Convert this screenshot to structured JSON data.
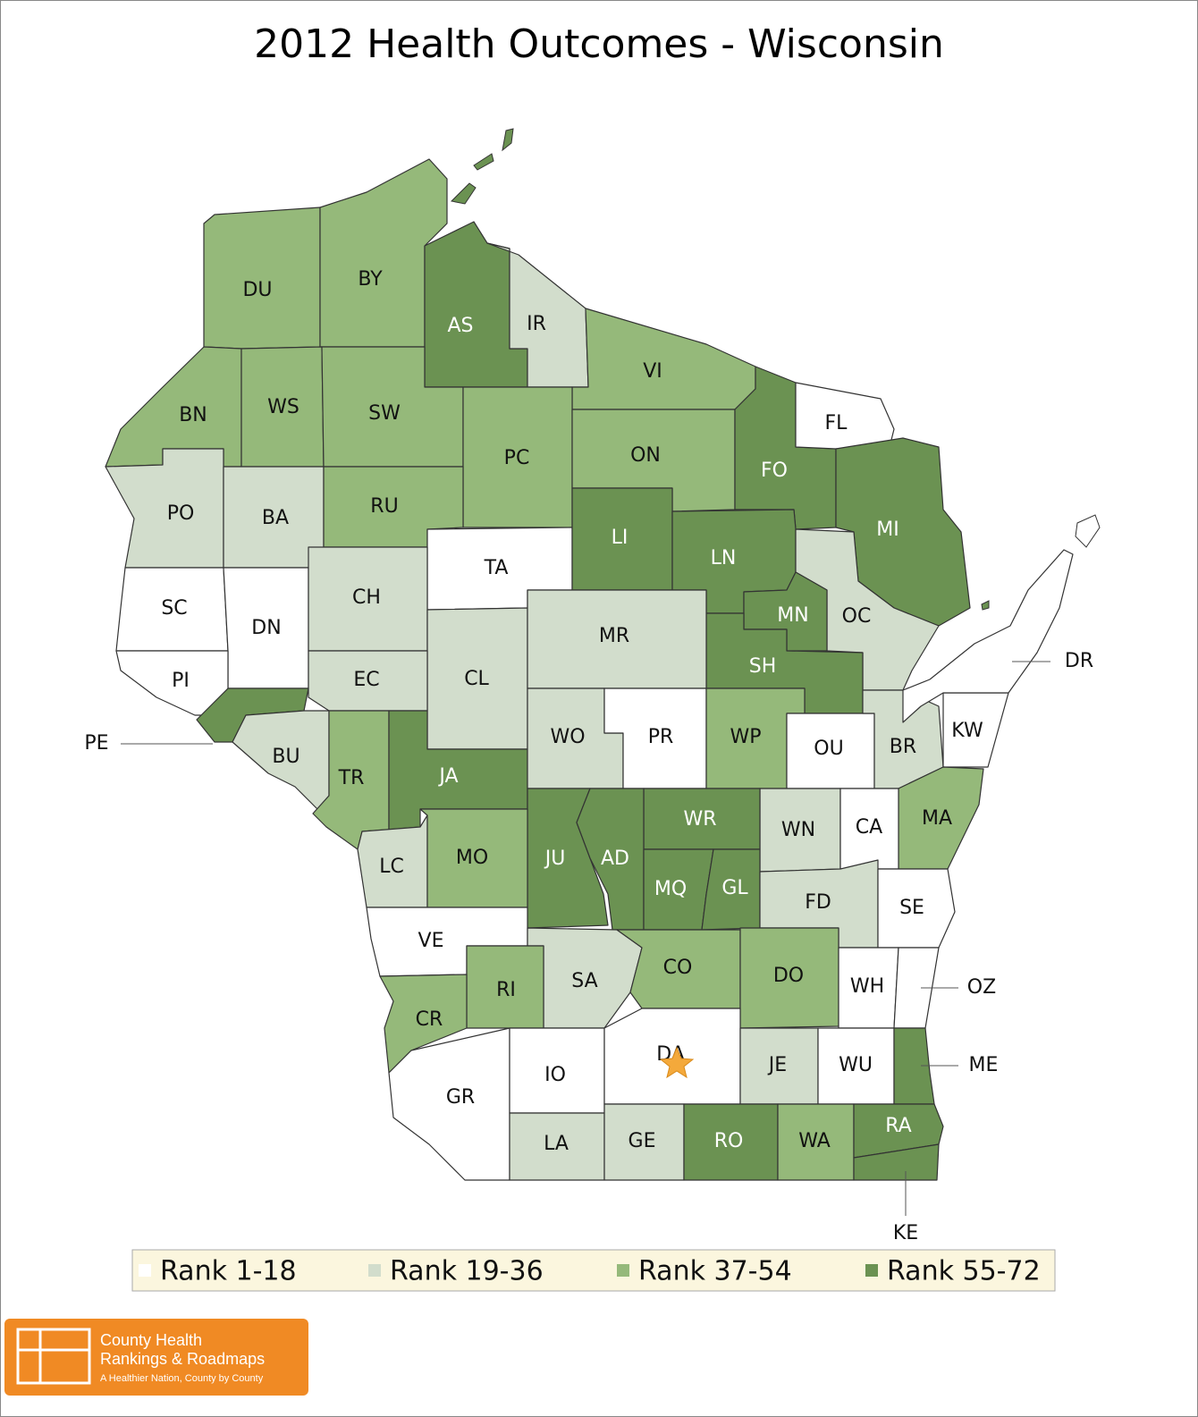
{
  "title": "2012 Health Outcomes - Wisconsin",
  "counties": [
    {
      "label": "DU",
      "color": "#95b97a"
    },
    {
      "label": "BY",
      "color": "#95b97a"
    },
    {
      "label": "AS",
      "color": "#6b9252"
    },
    {
      "label": "IR",
      "color": "#d2ddcc"
    },
    {
      "label": "VI",
      "color": "#95b97a"
    },
    {
      "label": "BN",
      "color": "#95b97a"
    },
    {
      "label": "WS",
      "color": "#95b97a"
    },
    {
      "label": "SW",
      "color": "#95b97a"
    },
    {
      "label": "PC",
      "color": "#95b97a"
    },
    {
      "label": "ON",
      "color": "#95b97a"
    },
    {
      "label": "FO",
      "color": "#6b9252"
    },
    {
      "label": "FL",
      "color": "#ffffff"
    },
    {
      "label": "MI",
      "color": "#6b9252"
    },
    {
      "label": "PO",
      "color": "#d2ddcc"
    },
    {
      "label": "BA",
      "color": "#d2ddcc"
    },
    {
      "label": "RU",
      "color": "#95b97a"
    },
    {
      "label": "TA",
      "color": "#ffffff"
    },
    {
      "label": "LI",
      "color": "#6b9252"
    },
    {
      "label": "LN",
      "color": "#6b9252"
    },
    {
      "label": "OC",
      "color": "#d2ddcc"
    },
    {
      "label": "MN",
      "color": "#6b9252"
    },
    {
      "label": "SH",
      "color": "#6b9252"
    },
    {
      "label": "SC",
      "color": "#ffffff"
    },
    {
      "label": "DN",
      "color": "#ffffff"
    },
    {
      "label": "CH",
      "color": "#d2ddcc"
    },
    {
      "label": "CL",
      "color": "#d2ddcc"
    },
    {
      "label": "MR",
      "color": "#d2ddcc"
    },
    {
      "label": "PI",
      "color": "#ffffff"
    },
    {
      "label": "EC",
      "color": "#d2ddcc"
    },
    {
      "label": "PE",
      "color": "#6b9252"
    },
    {
      "label": "BU",
      "color": "#d2ddcc"
    },
    {
      "label": "TR",
      "color": "#95b97a"
    },
    {
      "label": "JA",
      "color": "#6b9252"
    },
    {
      "label": "WO",
      "color": "#d2ddcc"
    },
    {
      "label": "PR",
      "color": "#ffffff"
    },
    {
      "label": "WP",
      "color": "#95b97a"
    },
    {
      "label": "OU",
      "color": "#ffffff"
    },
    {
      "label": "BR",
      "color": "#d2ddcc"
    },
    {
      "label": "KW",
      "color": "#ffffff"
    },
    {
      "label": "DR",
      "color": "#ffffff"
    },
    {
      "label": "MA",
      "color": "#95b97a"
    },
    {
      "label": "WN",
      "color": "#d2ddcc"
    },
    {
      "label": "CA",
      "color": "#ffffff"
    },
    {
      "label": "WR",
      "color": "#6b9252"
    },
    {
      "label": "JU",
      "color": "#6b9252"
    },
    {
      "label": "AD",
      "color": "#6b9252"
    },
    {
      "label": "MQ",
      "color": "#6b9252"
    },
    {
      "label": "GL",
      "color": "#6b9252"
    },
    {
      "label": "FD",
      "color": "#d2ddcc"
    },
    {
      "label": "SE",
      "color": "#ffffff"
    },
    {
      "label": "LC",
      "color": "#d2ddcc"
    },
    {
      "label": "MO",
      "color": "#95b97a"
    },
    {
      "label": "VE",
      "color": "#ffffff"
    },
    {
      "label": "SA",
      "color": "#d2ddcc"
    },
    {
      "label": "RI",
      "color": "#95b97a"
    },
    {
      "label": "CR",
      "color": "#95b97a"
    },
    {
      "label": "CO",
      "color": "#95b97a"
    },
    {
      "label": "DO",
      "color": "#95b97a"
    },
    {
      "label": "WH",
      "color": "#ffffff"
    },
    {
      "label": "OZ",
      "color": "#ffffff"
    },
    {
      "label": "GR",
      "color": "#ffffff"
    },
    {
      "label": "IO",
      "color": "#ffffff"
    },
    {
      "label": "DA",
      "color": "#ffffff"
    },
    {
      "label": "JE",
      "color": "#d2ddcc"
    },
    {
      "label": "WU",
      "color": "#ffffff"
    },
    {
      "label": "ME",
      "color": "#6b9252"
    },
    {
      "label": "LA",
      "color": "#d2ddcc"
    },
    {
      "label": "GE",
      "color": "#d2ddcc"
    },
    {
      "label": "RO",
      "color": "#6b9252"
    },
    {
      "label": "WA",
      "color": "#95b97a"
    },
    {
      "label": "RA",
      "color": "#6b9252"
    },
    {
      "label": "KE",
      "color": "#6b9252"
    }
  ],
  "legend": [
    {
      "label": "Rank 1-18",
      "color": "#ffffff"
    },
    {
      "label": "Rank 19-36",
      "color": "#d2ddcc"
    },
    {
      "label": "Rank 37-54",
      "color": "#95b97a"
    },
    {
      "label": "Rank 55-72",
      "color": "#6b9252"
    }
  ],
  "logo": {
    "line1": "County Health",
    "line2": "Rankings & Roadmaps",
    "tagline": "A Healthier Nation, County by County"
  }
}
